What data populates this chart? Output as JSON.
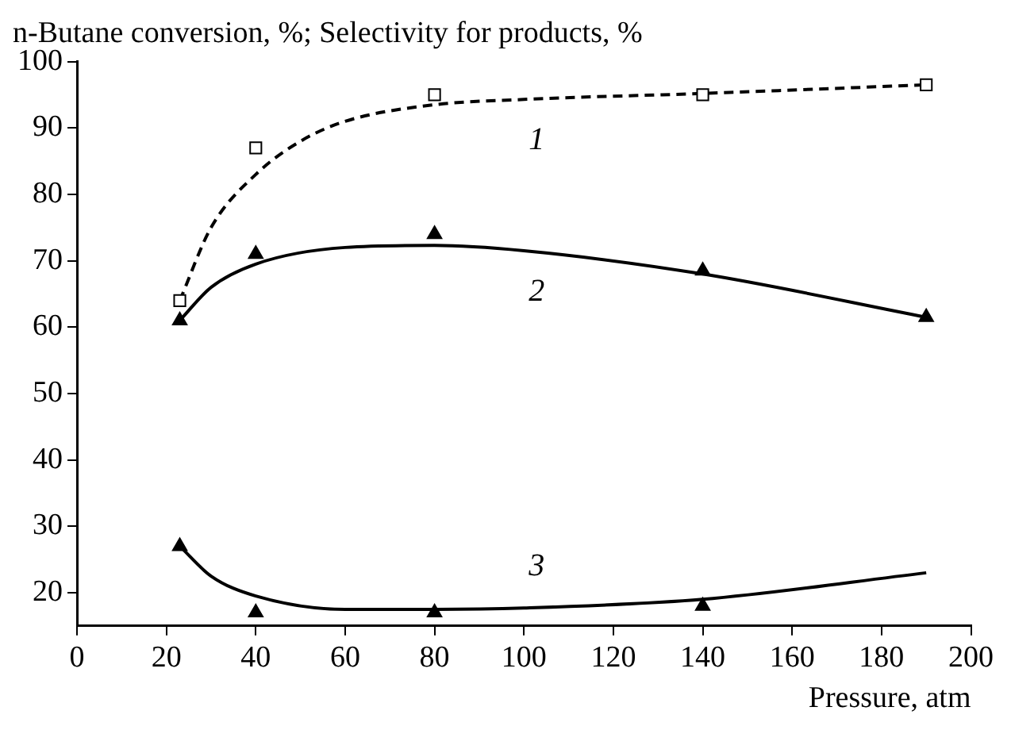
{
  "chart_data": {
    "type": "scatter",
    "ylabel": "n-Butane conversion, %; Selectivity for products, %",
    "xlabel": "Pressure, atm",
    "xlim": [
      0,
      200
    ],
    "xticks": [
      0,
      20,
      40,
      60,
      80,
      100,
      120,
      140,
      160,
      180,
      200
    ],
    "ylim": [
      15,
      100
    ],
    "yticks": [
      20,
      30,
      40,
      50,
      60,
      70,
      80,
      90,
      100
    ],
    "grid": false,
    "legend": false,
    "series": [
      {
        "color": "#000000",
        "marker": "square",
        "x": [
          23,
          40,
          80,
          140,
          190
        ],
        "values": [
          64,
          87,
          95,
          95,
          96.5
        ]
      },
      {
        "color": "#000000",
        "marker": "triangle",
        "x": [
          23,
          40,
          80,
          140,
          190
        ],
        "values": [
          61,
          71,
          74,
          68.5,
          61.5
        ]
      },
      {
        "color": "#000000",
        "marker": "triangle",
        "x": [
          23,
          40,
          80,
          140
        ],
        "values": [
          27,
          17,
          17,
          18
        ]
      },
      {
        "type": "line",
        "name": "1",
        "color": "#000000",
        "line_style": "dashed",
        "x": [
          23,
          30,
          40,
          50,
          60,
          80,
          100,
          140,
          190
        ],
        "values": [
          64,
          75,
          83,
          88,
          91,
          93.5,
          94.3,
          95.2,
          96.5
        ]
      },
      {
        "type": "line",
        "name": "2",
        "color": "#000000",
        "line_style": "solid",
        "x": [
          23,
          30,
          40,
          60,
          80,
          100,
          140,
          190
        ],
        "values": [
          61,
          66,
          69.5,
          72,
          72.3,
          71.5,
          68,
          61.5
        ]
      },
      {
        "type": "line",
        "name": "3",
        "color": "#000000",
        "line_style": "solid",
        "x": [
          23,
          30,
          40,
          60,
          80,
          100,
          140,
          190
        ],
        "values": [
          27,
          22.5,
          19.5,
          17.5,
          17.5,
          17.7,
          19,
          23
        ]
      }
    ]
  }
}
